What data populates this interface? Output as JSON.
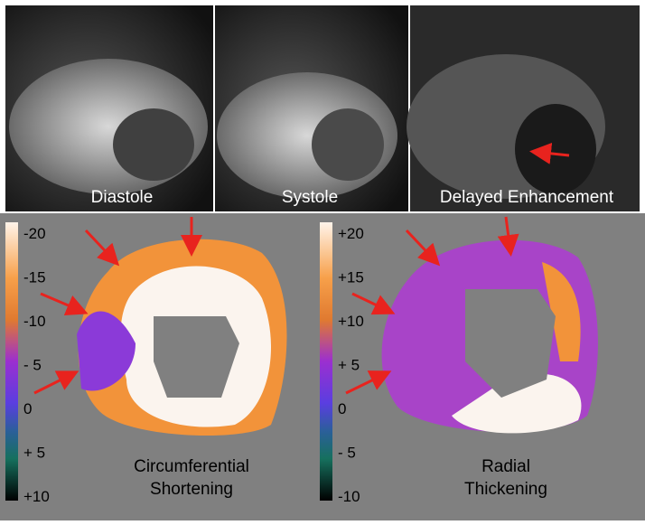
{
  "panels": [
    {
      "label": "Diastole"
    },
    {
      "label": "Systole"
    },
    {
      "label": "Delayed Enhancement"
    }
  ],
  "maps": [
    {
      "caption": [
        "Circumferential",
        "Shortening"
      ],
      "colorbar_labels": [
        "-20",
        "-15",
        "-10",
        "- 5",
        "0",
        "+ 5",
        "+10"
      ]
    },
    {
      "caption": [
        "Radial",
        "Thickening"
      ],
      "colorbar_labels": [
        "+20",
        "+15",
        "+10",
        "+ 5",
        "0",
        "- 5",
        "-10"
      ]
    }
  ]
}
